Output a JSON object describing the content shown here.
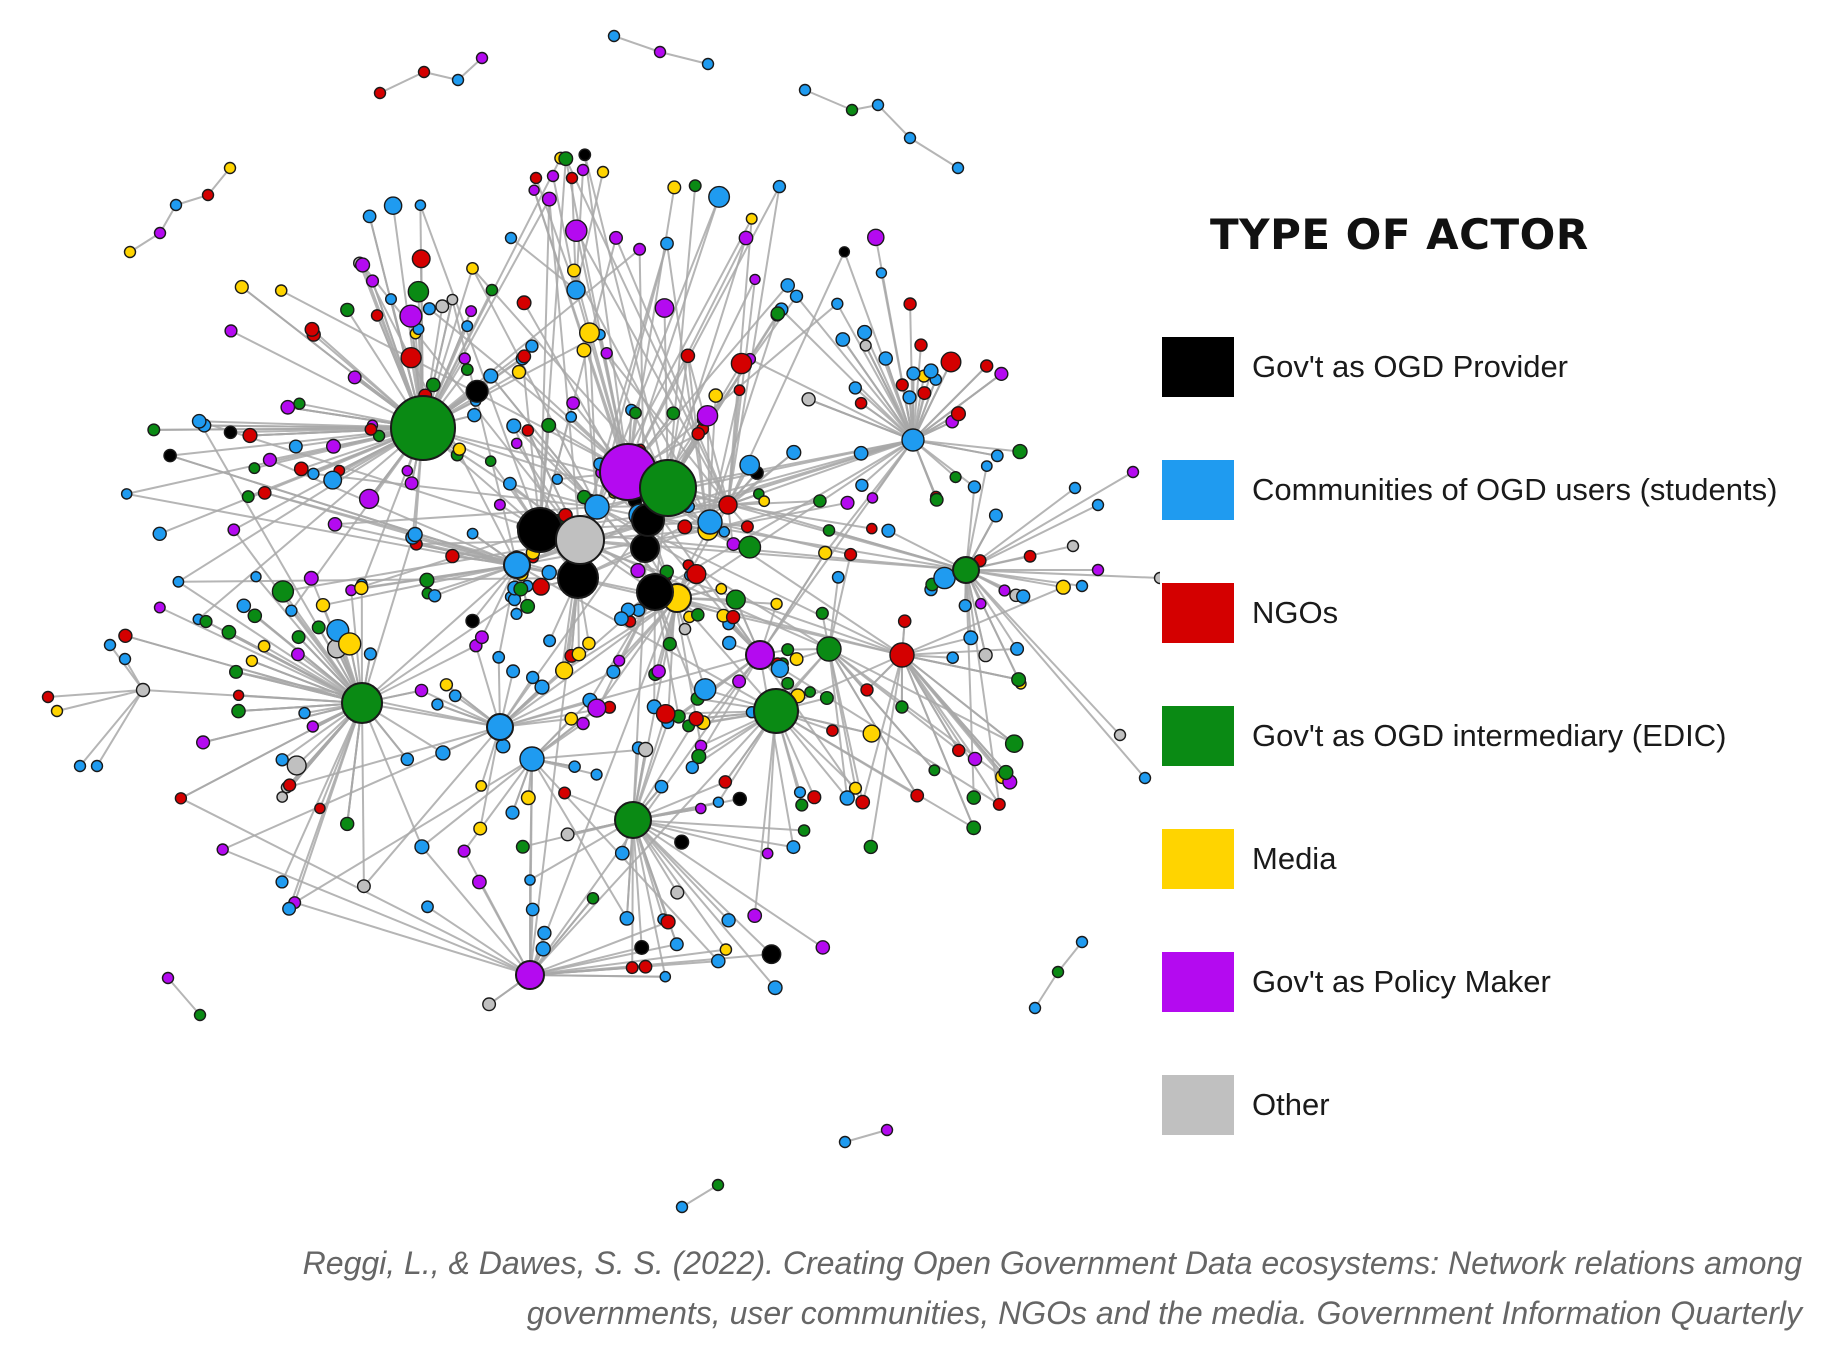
{
  "legend": {
    "title": "TYPE OF ACTOR",
    "items": [
      {
        "label": "Gov't as OGD Provider",
        "color": "#000000"
      },
      {
        "label": "Communities of OGD users (students)",
        "color": "#1f9bf0"
      },
      {
        "label": "NGOs",
        "color": "#d40000"
      },
      {
        "label": "Gov't as OGD intermediary (EDIC)",
        "color": "#0a8a14"
      },
      {
        "label": "Media",
        "color": "#ffd400"
      },
      {
        "label": "Gov't as Policy Maker",
        "color": "#b40af0"
      },
      {
        "label": "Other",
        "color": "#c0c0c0"
      }
    ]
  },
  "caption": "Reggi, L., & Dawes, S. S. (2022). Creating Open Government Data ecosystems: Network relations among governments, user communities, NGOs and the media. Government Information Quarterly",
  "edge_color": "#a8a8a8"
}
